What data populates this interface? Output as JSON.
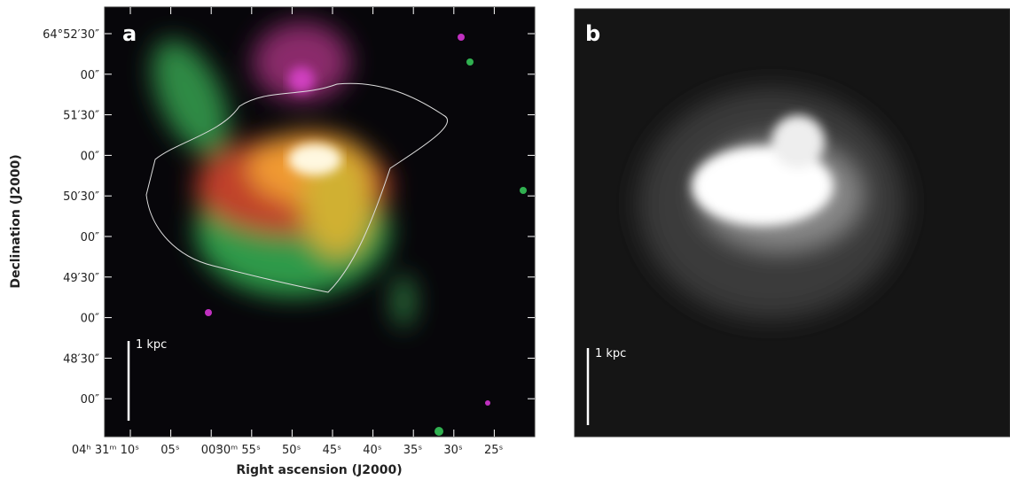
{
  "panel_a": {
    "label": "a",
    "scale_bar": "1 kpc",
    "y_axis": {
      "title": "Declination (J2000)",
      "ticks": [
        "64°52′30″",
        "00″",
        "51′30″",
        "00″",
        "50′30″",
        "00″",
        "49′30″",
        "00″",
        "48′30″",
        "00″"
      ]
    },
    "x_axis": {
      "title": "Right ascension (J2000)",
      "ticks": [
        "04ʰ 31ᵐ 10ˢ",
        "05ˢ",
        "00ˢ",
        "30ᵐ 55ˢ",
        "50ˢ",
        "45ˢ",
        "40ˢ",
        "35ˢ",
        "30ˢ",
        "25ˢ"
      ]
    }
  },
  "panel_b": {
    "label": "b",
    "scale_bar": "1 kpc"
  }
}
